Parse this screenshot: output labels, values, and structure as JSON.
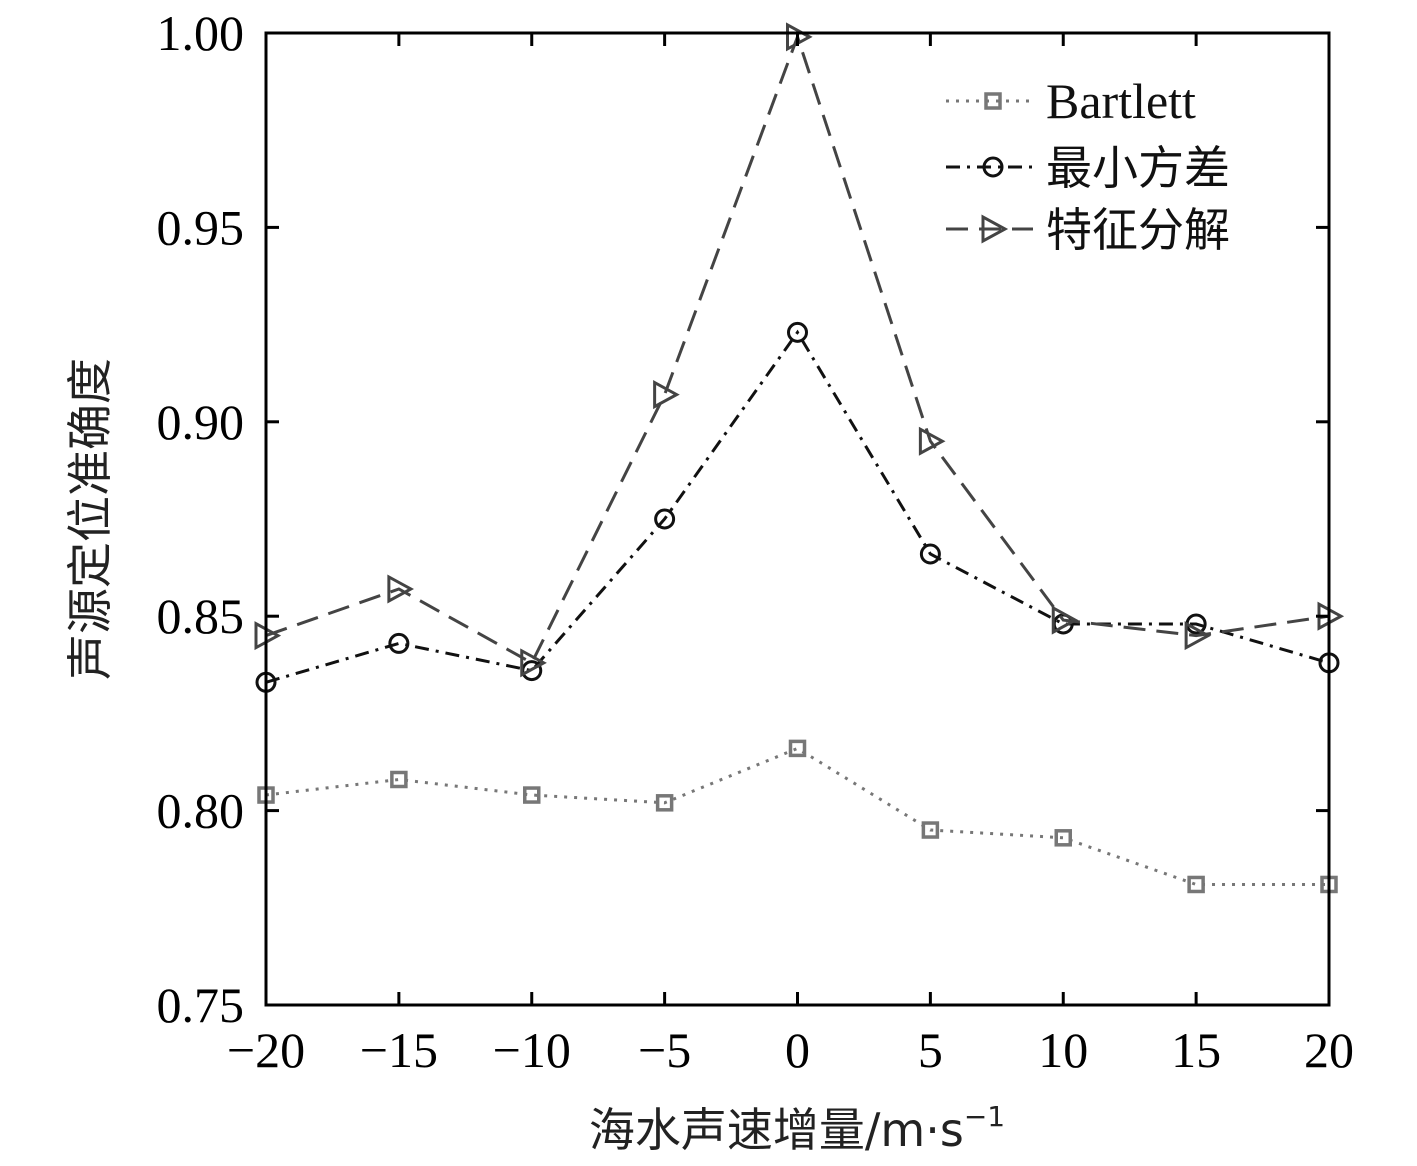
{
  "chart_data": {
    "type": "line",
    "xlabel": "海水声速增量/m·s",
    "xlabel_sup": "−1",
    "ylabel": "声源定位准确度",
    "xlim": [
      -20,
      20
    ],
    "ylim": [
      0.75,
      1.0
    ],
    "xticks": [
      -20,
      -15,
      -10,
      -5,
      0,
      5,
      10,
      15,
      20
    ],
    "xtick_labels": [
      "−20",
      "−15",
      "−10",
      "−5",
      "0",
      "5",
      "10",
      "15",
      "20"
    ],
    "yticks": [
      0.75,
      0.8,
      0.85,
      0.9,
      0.95,
      1.0
    ],
    "ytick_labels": [
      "0.75",
      "0.80",
      "0.85",
      "0.90",
      "0.95",
      "1.00"
    ],
    "grid": false,
    "legend_position": "top-right",
    "x": [
      -20,
      -15,
      -10,
      -5,
      0,
      5,
      10,
      15,
      20
    ],
    "series": [
      {
        "name": "Bartlett",
        "values": [
          0.804,
          0.808,
          0.804,
          0.802,
          0.816,
          0.795,
          0.793,
          0.781,
          0.781
        ],
        "color": "#777777",
        "line_style": "dotted",
        "marker": "square"
      },
      {
        "name": "最小方差",
        "values": [
          0.833,
          0.843,
          0.836,
          0.875,
          0.923,
          0.866,
          0.848,
          0.848,
          0.838
        ],
        "color": "#111111",
        "line_style": "dashdot",
        "marker": "circle"
      },
      {
        "name": "特征分解",
        "values": [
          0.845,
          0.857,
          0.838,
          0.907,
          0.999,
          0.895,
          0.849,
          0.845,
          0.85
        ],
        "color": "#444444",
        "line_style": "dashed",
        "marker": "triangle-right"
      }
    ]
  }
}
